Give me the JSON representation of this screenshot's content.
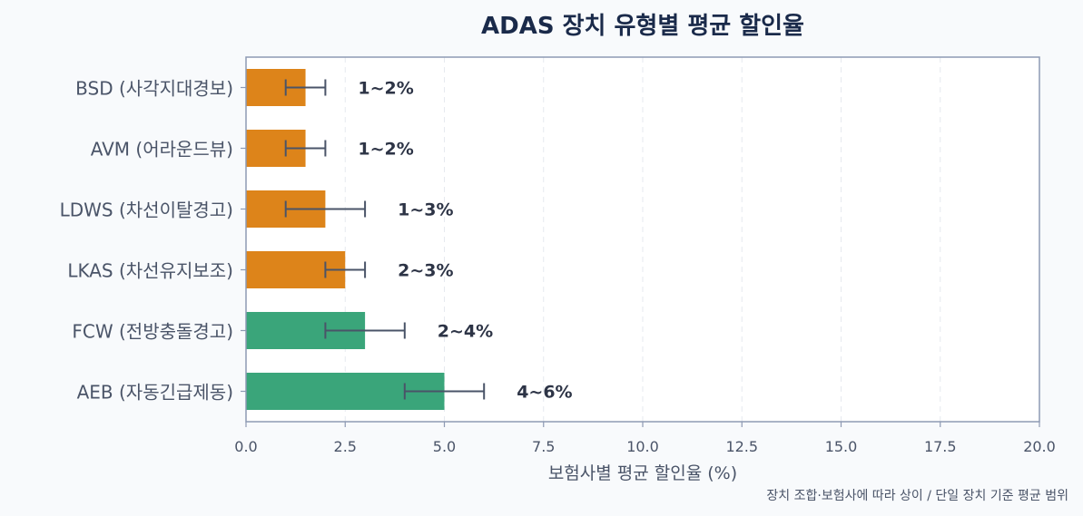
{
  "chart_data": {
    "type": "bar",
    "orientation": "horizontal",
    "title": "ADAS 장치 유형별 평균 할인율",
    "xlabel": "보험사별 평균 할인율 (%)",
    "ylabel": "",
    "xlim": [
      0,
      20
    ],
    "xticks": [
      "0.0",
      "2.5",
      "5.0",
      "7.5",
      "10.0",
      "12.5",
      "15.0",
      "17.5",
      "20.0"
    ],
    "grid": "vertical-dashed",
    "footnote": "장치 조합·보험사에 따라 상이 / 단일 장치 기준 평균 범위",
    "categories": [
      "BSD (사각지대경보)",
      "AVM (어라운드뷰)",
      "LDWS (차선이탈경고)",
      "LKAS (차선유지보조)",
      "FCW (전방충돌경고)",
      "AEB (자동긴급제동)"
    ],
    "values": [
      1.5,
      1.5,
      2.0,
      2.5,
      3.0,
      5.0
    ],
    "ranges": [
      [
        1,
        2
      ],
      [
        1,
        2
      ],
      [
        1,
        3
      ],
      [
        2,
        3
      ],
      [
        2,
        4
      ],
      [
        4,
        6
      ]
    ],
    "range_labels": [
      "1~2%",
      "1~2%",
      "1~3%",
      "2~3%",
      "2~4%",
      "4~6%"
    ],
    "bar_colors": [
      "#dd841a",
      "#dd841a",
      "#dd841a",
      "#dd841a",
      "#3aa57a",
      "#3aa57a"
    ]
  }
}
